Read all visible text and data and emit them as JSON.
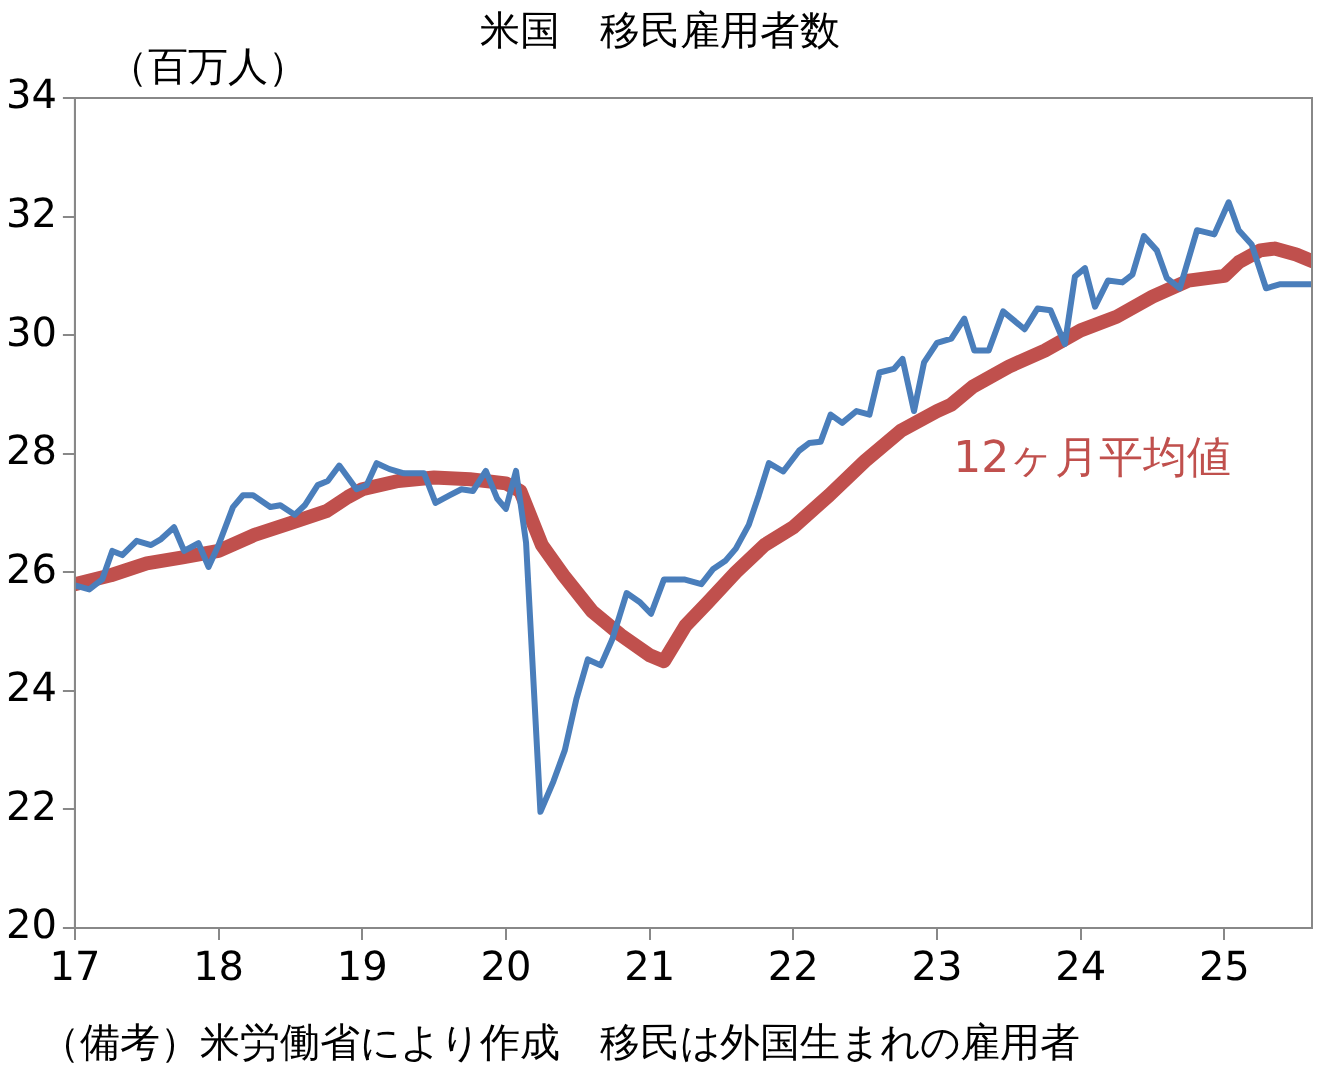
{
  "chart_data": {
    "type": "line",
    "title": "米国　移民雇用者数",
    "ylabel": "（百万人）",
    "annotations": [
      "（備考）米労働省により作成　移民は外国生まれの雇用者"
    ],
    "xlim": [
      17,
      25.61
    ],
    "xticks": [
      17,
      18,
      19,
      20,
      21,
      22,
      23,
      24,
      25
    ],
    "ylim": [
      20,
      34
    ],
    "yticks": [
      20,
      22,
      24,
      26,
      28,
      30,
      32,
      34
    ],
    "grid": false,
    "legend": false,
    "marker": "none",
    "line_style": "solid",
    "series": [
      {
        "color": "#4a7ebb",
        "x": [
          17.0,
          17.1,
          17.19,
          17.26,
          17.33,
          17.43,
          17.53,
          17.6,
          17.69,
          17.76,
          17.86,
          17.93,
          18.0,
          18.1,
          18.17,
          18.24,
          18.36,
          18.43,
          18.53,
          18.6,
          18.69,
          18.76,
          18.84,
          18.96,
          19.03,
          19.1,
          19.19,
          19.29,
          19.43,
          19.51,
          19.61,
          19.69,
          19.77,
          19.86,
          19.94,
          20.0,
          20.07,
          20.14,
          20.24,
          20.33,
          20.41,
          20.49,
          20.57,
          20.66,
          20.74,
          20.84,
          20.93,
          21.01,
          21.1,
          21.24,
          21.36,
          21.44,
          21.53,
          21.6,
          21.69,
          21.76,
          21.83,
          21.93,
          22.04,
          22.11,
          22.19,
          22.26,
          22.34,
          22.44,
          22.53,
          22.6,
          22.7,
          22.76,
          22.84,
          22.91,
          23.0,
          23.1,
          23.19,
          23.26,
          23.36,
          23.46,
          23.51,
          23.61,
          23.7,
          23.79,
          23.89,
          23.96,
          24.03,
          24.1,
          24.19,
          24.29,
          24.36,
          24.44,
          24.53,
          24.6,
          24.69,
          24.81,
          24.93,
          25.03,
          25.1,
          25.19,
          25.29,
          25.39,
          25.53,
          25.61
        ],
        "values": [
          25.78,
          25.71,
          25.88,
          26.36,
          26.29,
          26.53,
          26.46,
          26.56,
          26.76,
          26.36,
          26.49,
          26.09,
          26.46,
          27.1,
          27.3,
          27.3,
          27.1,
          27.13,
          26.97,
          27.13,
          27.47,
          27.54,
          27.8,
          27.4,
          27.47,
          27.84,
          27.74,
          27.67,
          27.67,
          27.17,
          27.3,
          27.4,
          27.37,
          27.71,
          27.24,
          27.07,
          27.71,
          26.5,
          21.96,
          22.47,
          23.0,
          23.86,
          24.53,
          24.43,
          24.87,
          25.65,
          25.5,
          25.3,
          25.88,
          25.88,
          25.8,
          26.05,
          26.2,
          26.4,
          26.8,
          27.3,
          27.84,
          27.7,
          28.05,
          28.18,
          28.2,
          28.66,
          28.52,
          28.72,
          28.66,
          29.37,
          29.43,
          29.6,
          28.72,
          29.54,
          29.87,
          29.94,
          30.28,
          29.74,
          29.74,
          30.4,
          30.3,
          30.1,
          30.45,
          30.42,
          29.85,
          30.99,
          31.13,
          30.48,
          30.92,
          30.89,
          31.02,
          31.67,
          31.43,
          30.96,
          30.79,
          31.77,
          31.7,
          32.24,
          31.77,
          31.53,
          30.79,
          30.86,
          30.86,
          30.86
        ]
      },
      {
        "name": "12ヶ月平均値",
        "color": "#c0504d",
        "x": [
          17.0,
          17.25,
          17.5,
          17.75,
          18.0,
          18.25,
          18.5,
          18.75,
          18.9,
          19.0,
          19.25,
          19.5,
          19.75,
          20.0,
          20.1,
          20.25,
          20.4,
          20.6,
          20.8,
          21.0,
          21.1,
          21.25,
          21.4,
          21.6,
          21.8,
          22.0,
          22.25,
          22.5,
          22.75,
          23.0,
          23.1,
          23.25,
          23.5,
          23.75,
          24.0,
          24.25,
          24.5,
          24.75,
          25.0,
          25.1,
          25.25,
          25.35,
          25.5,
          25.61
        ],
        "values": [
          25.8,
          25.95,
          26.15,
          26.25,
          26.36,
          26.63,
          26.83,
          27.03,
          27.27,
          27.4,
          27.54,
          27.6,
          27.57,
          27.5,
          27.37,
          26.46,
          25.95,
          25.34,
          24.94,
          24.6,
          24.5,
          25.1,
          25.48,
          26.0,
          26.46,
          26.76,
          27.3,
          27.88,
          28.39,
          28.72,
          28.83,
          29.13,
          29.47,
          29.74,
          30.08,
          30.31,
          30.65,
          30.92,
          31.0,
          31.23,
          31.43,
          31.46,
          31.36,
          31.25
        ]
      }
    ]
  }
}
